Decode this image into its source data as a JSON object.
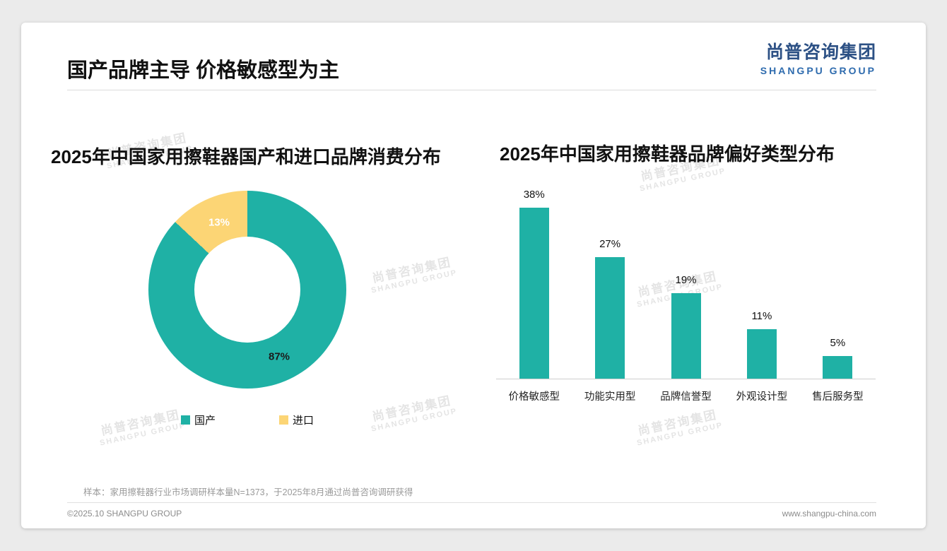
{
  "slide": {
    "title": "国产品牌主导 价格敏感型为主",
    "logo": {
      "cn": "尚普咨询集团",
      "en": "SHANGPU GROUP"
    },
    "watermark": {
      "cn": "尚普咨询集团",
      "en": "SHANGPU GROUP"
    },
    "note": "样本：家用擦鞋器行业市场调研样本量N=1373，于2025年8月通过尚普咨询调研获得",
    "footer_left": "©2025.10 SHANGPU GROUP",
    "footer_right": "www.shangpu-china.com"
  },
  "colors": {
    "teal": "#1FB1A5",
    "yellow": "#FCD575",
    "brand_blue": "#2D5185"
  },
  "chart_data": [
    {
      "type": "pie",
      "donut": true,
      "title": "2025年中国家用擦鞋器国产和进口品牌消费分布",
      "labels": [
        "国产",
        "进口"
      ],
      "values": [
        87,
        13
      ],
      "display_labels": [
        "87%",
        "13%"
      ],
      "unit": "%",
      "colors": [
        "#1FB1A5",
        "#FCD575"
      ],
      "legend_position": "bottom"
    },
    {
      "type": "bar",
      "title": "2025年中国家用擦鞋器品牌偏好类型分布",
      "categories": [
        "价格敏感型",
        "功能实用型",
        "品牌信誉型",
        "外观设计型",
        "售后服务型"
      ],
      "values": [
        38,
        27,
        19,
        11,
        5
      ],
      "data_labels": [
        "38%",
        "27%",
        "19%",
        "11%",
        "5%"
      ],
      "unit": "%",
      "ylim": [
        0,
        40
      ],
      "bar_color": "#1FB1A5",
      "grid": false,
      "legend_position": "none"
    }
  ]
}
